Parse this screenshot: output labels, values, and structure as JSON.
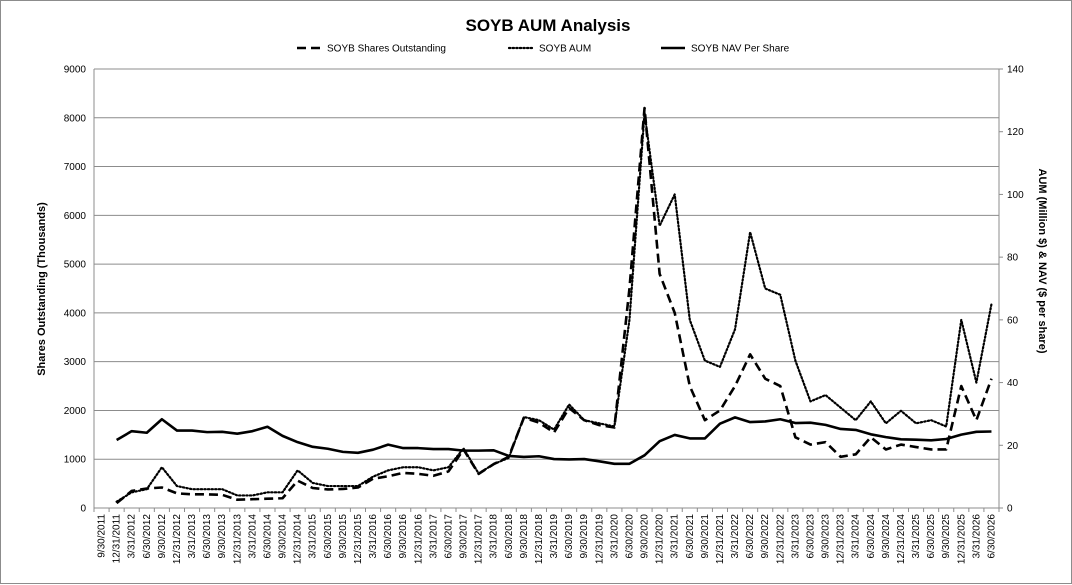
{
  "chart_data": {
    "type": "line",
    "title": "SOYB AUM Analysis",
    "y_left_label": "Shares Outstanding (Thousands)",
    "y_right_label": "AUM (Million $) & NAV ($ per share)",
    "y_left_range": [
      0,
      9000
    ],
    "y_right_range": [
      0,
      140
    ],
    "y_left_ticks": [
      "0",
      "1000",
      "2000",
      "3000",
      "4000",
      "5000",
      "6000",
      "7000",
      "8000",
      "9000"
    ],
    "y_right_ticks": [
      "0",
      "20",
      "40",
      "60",
      "80",
      "100",
      "120",
      "140"
    ],
    "grid": true,
    "legend_position": "top",
    "x": [
      "9/30/2011",
      "12/31/2011",
      "3/31/2012",
      "6/30/2012",
      "9/30/2012",
      "12/31/2012",
      "3/31/2013",
      "6/30/2013",
      "9/30/2013",
      "12/31/2013",
      "3/31/2014",
      "6/30/2014",
      "9/30/2014",
      "12/31/2014",
      "3/31/2015",
      "6/30/2015",
      "9/30/2015",
      "12/31/2015",
      "3/31/2016",
      "6/30/2016",
      "9/30/2016",
      "12/31/2016",
      "3/31/2017",
      "6/30/2017",
      "9/30/2017",
      "12/31/2017",
      "3/31/2018",
      "6/30/2018",
      "9/30/2018",
      "12/31/2018",
      "3/31/2019",
      "6/30/2019",
      "9/30/2019",
      "12/31/2019",
      "3/31/2020",
      "6/30/2020",
      "9/30/2020",
      "12/31/2020",
      "3/31/2021",
      "6/30/2021",
      "9/30/2021",
      "12/31/2021",
      "3/31/2022",
      "6/30/2022",
      "9/30/2022",
      "12/31/2022",
      "3/31/2023",
      "6/30/2023",
      "9/30/2023",
      "12/31/2023",
      "3/31/2024",
      "6/30/2024",
      "9/30/2024",
      "12/31/2024",
      "3/31/2025",
      "6/30/2025",
      "9/30/2025",
      "12/31/2025",
      "3/31/2026",
      "6/30/2026"
    ],
    "series": [
      {
        "name": "SOYB Shares Outstanding",
        "axis": "left",
        "style": "dashed",
        "values": [
          null,
          100,
          350,
          400,
          420,
          300,
          280,
          280,
          270,
          170,
          180,
          190,
          200,
          560,
          410,
          380,
          390,
          420,
          600,
          650,
          720,
          700,
          660,
          750,
          1200,
          700,
          900,
          1050,
          1850,
          1750,
          1550,
          2050,
          1800,
          1700,
          1650,
          4500,
          8200,
          4800,
          4000,
          2500,
          1800,
          2000,
          2500,
          3150,
          2650,
          2500,
          1450,
          1300,
          1350,
          1050,
          1100,
          1450,
          1200,
          1300,
          1250,
          1200,
          1200,
          2500,
          1800,
          2650
        ]
      },
      {
        "name": "SOYB AUM",
        "axis": "right",
        "style": "dotted",
        "values": [
          null,
          2,
          5,
          6,
          13,
          7,
          6,
          6,
          6,
          4,
          4,
          5,
          5,
          12,
          8,
          7,
          7,
          7,
          10,
          12,
          13,
          13,
          12,
          13,
          19,
          11,
          14,
          16,
          29,
          28,
          25,
          33,
          28,
          27,
          26,
          60,
          126,
          90,
          100,
          60,
          47,
          45,
          57,
          88,
          70,
          68,
          47,
          34,
          36,
          32,
          28,
          34,
          27,
          31,
          27,
          28,
          26,
          60,
          40,
          65
        ]
      },
      {
        "name": "SOYB NAV Per Share",
        "axis": "right",
        "style": "solid",
        "values": [
          null,
          21.7,
          24.5,
          24.0,
          28.3,
          24.7,
          24.7,
          24.2,
          24.3,
          23.7,
          24.5,
          25.9,
          23.0,
          21.0,
          19.5,
          18.9,
          17.9,
          17.6,
          18.6,
          20.2,
          19.1,
          19.1,
          18.8,
          18.8,
          18.3,
          18.3,
          18.4,
          16.6,
          16.3,
          16.5,
          15.6,
          15.5,
          15.6,
          14.9,
          14.1,
          14.1,
          16.8,
          21.3,
          23.3,
          22.2,
          22.2,
          26.9,
          28.9,
          27.4,
          27.6,
          28.3,
          27.1,
          27.2,
          26.5,
          25.2,
          24.9,
          23.5,
          22.6,
          21.9,
          21.8,
          21.6,
          22.0,
          23.4,
          24.3,
          24.4
        ]
      }
    ]
  }
}
